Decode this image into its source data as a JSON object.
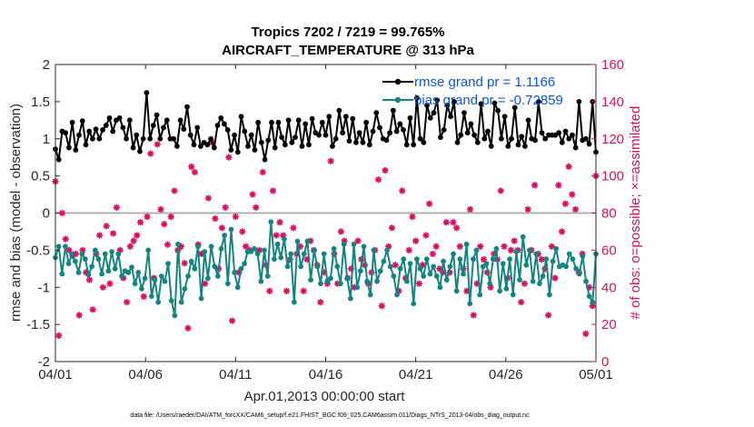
{
  "chart_data": {
    "type": "line",
    "title": "Tropics 7202 / 7219 = 99.765%",
    "subtitle": "AIRCRAFT_TEMPERATURE @ 313 hPa",
    "xlabel": "Apr.01,2013 00:00:00 start",
    "ylabel_left": "rmse and bias (model - observation)",
    "ylabel_right": "# of obs: o=possible; ×=assimilated",
    "footer": "data file: /Users/raeder/DAI/ATM_forcXX/CAM6_setup/f.e21.FHIST_BGC.f09_025.CAM6assim.011/Diags_NTrS_2013-04/obs_diag_output.nc",
    "xlim": [
      0,
      30
    ],
    "ylim_left": [
      -2,
      2
    ],
    "ylim_right": [
      0,
      160
    ],
    "x_ticks": [
      0,
      5,
      10,
      15,
      20,
      25,
      30
    ],
    "x_tick_labels": [
      "04/01",
      "04/06",
      "04/11",
      "04/16",
      "04/21",
      "04/26",
      "05/01"
    ],
    "y_ticks_left": [
      -2,
      -1.5,
      -1,
      -0.5,
      0,
      0.5,
      1,
      1.5,
      2
    ],
    "y_tick_labels_left": [
      "-2",
      "-1.5",
      "-1",
      "-0.5",
      "0",
      "0.5",
      "1",
      "1.5",
      "2"
    ],
    "y_ticks_right": [
      0,
      20,
      40,
      60,
      80,
      100,
      120,
      140,
      160
    ],
    "y_tick_labels_right": [
      "0",
      "20",
      "40",
      "60",
      "80",
      "100",
      "120",
      "140",
      "160"
    ],
    "legend": [
      {
        "label": "rmse grand pr = 1.1166",
        "color": "#000000"
      },
      {
        "label": "bias grand pr = -0.72859",
        "color": "#138480"
      }
    ],
    "colors": {
      "rmse": "#000000",
      "bias": "#138480",
      "obs": "#d60f5e",
      "zero_line": "#b0b0b0"
    },
    "series": [
      {
        "name": "rmse",
        "values": [
          0.86,
          0.72,
          1.1,
          1.08,
          0.88,
          1.22,
          0.85,
          1.05,
          1.24,
          0.92,
          1.1,
          1.0,
          1.13,
          1.0,
          1.12,
          1.18,
          1.28,
          1.1,
          1.25,
          1.28,
          1.15,
          1.0,
          1.25,
          0.88,
          1.05,
          0.83,
          1.0,
          1.62,
          1.0,
          1.18,
          1.32,
          1.0,
          1.15,
          1.25,
          1.0,
          1.0,
          0.9,
          1.25,
          1.13,
          1.43,
          1.05,
          0.92,
          1.15,
          0.9,
          0.95,
          0.92,
          1.0,
          0.88,
          1.18,
          1.28,
          1.2,
          1.12,
          0.85,
          1.05,
          0.82,
          1.3,
          1.1,
          0.9,
          1.05,
          0.85,
          1.22,
          0.95,
          0.72,
          0.98,
          1.22,
          0.88,
          1.22,
          1.02,
          0.92,
          1.25,
          0.95,
          1.02,
          1.25,
          0.9,
          1.2,
          0.92,
          1.27,
          1.08,
          1.05,
          1.22,
          1.05,
          1.3,
          0.9,
          1.0,
          1.38,
          1.08,
          1.3,
          0.97,
          1.27,
          0.95,
          1.08,
          0.95,
          1.22,
          0.92,
          1.1,
          1.35,
          1.15,
          1.0,
          0.98,
          1.08,
          1.38,
          1.1,
          1.2,
          1.12,
          0.92,
          1.28,
          0.92,
          1.55,
          1.0,
          0.95,
          1.45,
          1.28,
          1.35,
          1.52,
          1.02,
          1.12,
          1.45,
          1.3,
          1.5,
          0.95,
          1.05,
          1.35,
          1.08,
          1.2,
          1.05,
          0.95,
          1.47,
          1.0,
          1.1,
          0.9,
          1.48,
          1.38,
          1.0,
          1.3,
          0.9,
          1.0,
          1.42,
          0.92,
          1.03,
          0.9,
          1.25,
          1.0,
          0.98,
          1.5,
          1.08,
          1.0,
          1.05,
          1.05,
          1.05,
          1.08,
          0.95,
          1.1,
          1.0,
          1.05,
          0.88,
          1.5,
          0.98,
          1.0,
          0.93,
          1.5,
          0.82
        ],
        "color": "#000000"
      },
      {
        "name": "bias",
        "values": [
          -0.6,
          -0.45,
          -0.82,
          -0.45,
          -0.68,
          -0.55,
          -0.65,
          -0.8,
          -0.55,
          -0.62,
          -0.83,
          -0.72,
          -0.5,
          -0.62,
          -0.82,
          -0.55,
          -0.78,
          -0.52,
          -0.75,
          -0.55,
          -0.85,
          -0.78,
          -0.8,
          -0.73,
          -0.95,
          -0.8,
          -1.02,
          -0.88,
          -0.5,
          -1.12,
          -0.9,
          -1.2,
          -0.85,
          -0.92,
          -0.68,
          -1.18,
          -1.38,
          -0.42,
          -1.2,
          -1.02,
          -0.85,
          -0.65,
          -0.75,
          -0.45,
          -1.15,
          -0.52,
          -0.88,
          -0.45,
          -0.72,
          -0.85,
          -0.48,
          -0.3,
          -0.95,
          -0.22,
          -0.8,
          -1.0,
          -0.75,
          -0.68,
          -0.52,
          -0.52,
          -0.48,
          -0.55,
          -0.92,
          -0.5,
          -0.85,
          -0.12,
          -0.62,
          -0.42,
          -0.6,
          -0.35,
          -0.72,
          -0.55,
          -1.2,
          -0.38,
          -0.72,
          -0.55,
          -0.38,
          -0.9,
          -0.5,
          -0.72,
          -0.95,
          -0.55,
          -0.92,
          -0.88,
          -0.48,
          -0.72,
          -0.95,
          -0.42,
          -0.88,
          -1.15,
          -0.42,
          -1.0,
          -0.78,
          -0.45,
          -0.92,
          -1.1,
          -0.5,
          -0.92,
          -0.78,
          -0.65,
          -0.5,
          -0.72,
          -0.85,
          -1.1,
          -0.75,
          -0.62,
          -0.92,
          -0.68,
          -1.22,
          -0.62,
          -0.75,
          -0.85,
          -0.62,
          -0.82,
          -0.72,
          -0.85,
          -1.0,
          -0.65,
          -0.9,
          -0.72,
          -0.55,
          -1.05,
          -0.62,
          -0.82,
          -0.42,
          -1.22,
          -0.62,
          -0.5,
          -1.1,
          -0.72,
          -0.68,
          -0.95,
          -0.62,
          -0.48,
          -1.05,
          -0.68,
          -1.02,
          -0.62,
          -1.1,
          -0.52,
          -0.9,
          -0.32,
          -0.7,
          -0.5,
          -0.92,
          -0.55,
          -0.95,
          -0.85,
          -0.62,
          -1.1,
          -0.65,
          -0.48,
          -0.72,
          -0.7,
          -0.72,
          -0.55,
          -0.62,
          -0.75,
          -0.82,
          -0.58,
          -0.92,
          -1.12,
          -1.2,
          -0.55
        ],
        "color": "#138480"
      },
      {
        "name": "obs_possible",
        "values": [
          97,
          14,
          80,
          66,
          60,
          57,
          58,
          25,
          60,
          48,
          44,
          28,
          58,
          68,
          40,
          73,
          42,
          69,
          83,
          60,
          45,
          32,
          62,
          65,
          68,
          75,
          35,
          78,
          112,
          45,
          117,
          82,
          74,
          63,
          78,
          92,
          60,
          62,
          53,
          18,
          105,
          102,
          63,
          58,
          42,
          88,
          118,
          77,
          50,
          72,
          83,
          110,
          22,
          78,
          48,
          70,
          62,
          60,
          90,
          83,
          60,
          102,
          52,
          38,
          92,
          68,
          75,
          68,
          38,
          55,
          72,
          58,
          62,
          38,
          55,
          65,
          60,
          52,
          32,
          48,
          42,
          108,
          58,
          42,
          70,
          65,
          45,
          50,
          40,
          65,
          55,
          52,
          42,
          48,
          60,
          98,
          30,
          103,
          62,
          72,
          52,
          38,
          92,
          45,
          60,
          78,
          65,
          42,
          52,
          68,
          85,
          58,
          62,
          50,
          48,
          75,
          48,
          75,
          72,
          62,
          50,
          38,
          82,
          25,
          42,
          62,
          55,
          48,
          40,
          58,
          55,
          92,
          62,
          45,
          60,
          65,
          60,
          32,
          42,
          82,
          60,
          95,
          58,
          55,
          50,
          25,
          62,
          45,
          95,
          70,
          85,
          105,
          90,
          82,
          48,
          58,
          15,
          40,
          30,
          100
        ],
        "color": "#d60f5e"
      }
    ]
  }
}
